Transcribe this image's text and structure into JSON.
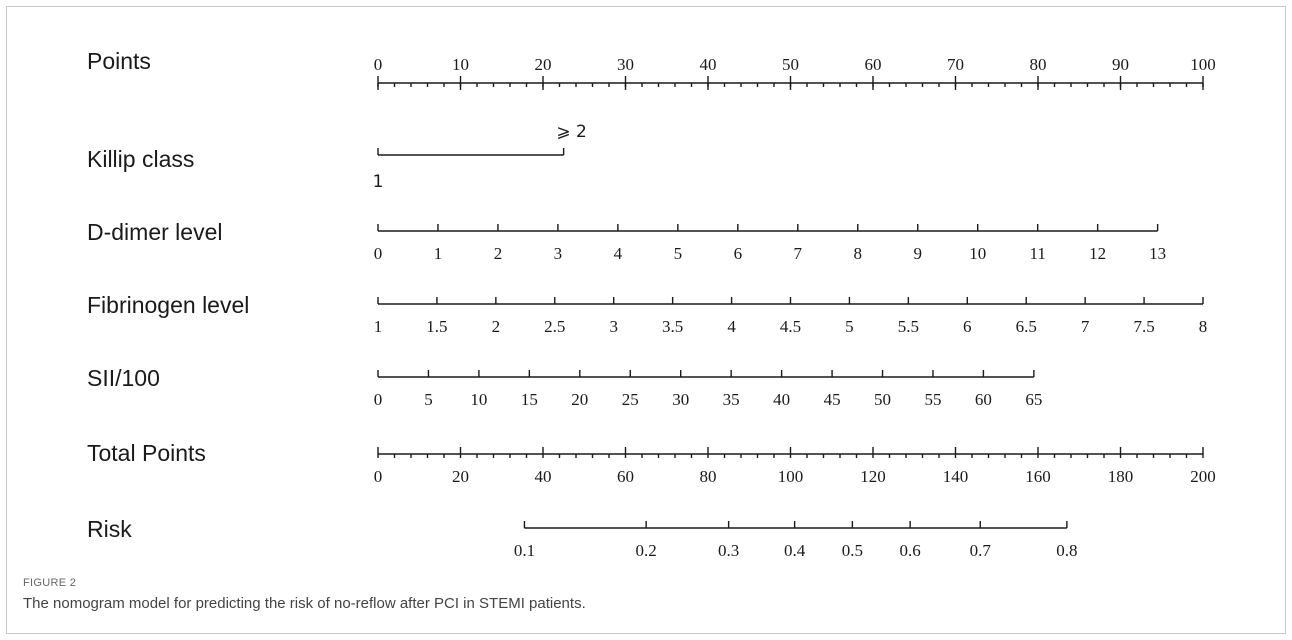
{
  "figure": {
    "label": "FIGURE 2",
    "caption": "The nomogram model for predicting the risk of no-reflow after PCI in STEMI patients."
  },
  "chart_data": {
    "type": "nomogram",
    "title": "",
    "points_scale": [
      0,
      100
    ],
    "rows": [
      {
        "name": "Points",
        "scale": "points",
        "ticks": [
          {
            "value": 0,
            "label": "0"
          },
          {
            "value": 10,
            "label": "10"
          },
          {
            "value": 20,
            "label": "20"
          },
          {
            "value": 30,
            "label": "30"
          },
          {
            "value": 40,
            "label": "40"
          },
          {
            "value": 50,
            "label": "50"
          },
          {
            "value": 60,
            "label": "60"
          },
          {
            "value": 70,
            "label": "70"
          },
          {
            "value": 80,
            "label": "80"
          },
          {
            "value": 90,
            "label": "90"
          },
          {
            "value": 100,
            "label": "100"
          }
        ],
        "minor_step": 2
      },
      {
        "name": "Killip class",
        "scale": "categorical",
        "ticks": [
          {
            "value": 1,
            "label": "1",
            "points": 0,
            "label_side": "below"
          },
          {
            "value": 2,
            "label": "⩾ 2",
            "points": 22.5,
            "label_side": "above"
          }
        ]
      },
      {
        "name": "D-dimer level",
        "scale": "linear",
        "from": [
          0,
          0
        ],
        "to": [
          13,
          94.5
        ],
        "ticks": [
          {
            "value": 0,
            "label": "0"
          },
          {
            "value": 1,
            "label": "1"
          },
          {
            "value": 2,
            "label": "2"
          },
          {
            "value": 3,
            "label": "3"
          },
          {
            "value": 4,
            "label": "4"
          },
          {
            "value": 5,
            "label": "5"
          },
          {
            "value": 6,
            "label": "6"
          },
          {
            "value": 7,
            "label": "7"
          },
          {
            "value": 8,
            "label": "8"
          },
          {
            "value": 9,
            "label": "9"
          },
          {
            "value": 10,
            "label": "10"
          },
          {
            "value": 11,
            "label": "11"
          },
          {
            "value": 12,
            "label": "12"
          },
          {
            "value": 13,
            "label": "13"
          }
        ]
      },
      {
        "name": "Fibrinogen level",
        "scale": "linear",
        "from": [
          1,
          0
        ],
        "to": [
          8,
          100
        ],
        "ticks": [
          {
            "value": 1,
            "label": "1"
          },
          {
            "value": 1.5,
            "label": "1.5"
          },
          {
            "value": 2,
            "label": "2"
          },
          {
            "value": 2.5,
            "label": "2.5"
          },
          {
            "value": 3,
            "label": "3"
          },
          {
            "value": 3.5,
            "label": "3.5"
          },
          {
            "value": 4,
            "label": "4"
          },
          {
            "value": 4.5,
            "label": "4.5"
          },
          {
            "value": 5,
            "label": "5"
          },
          {
            "value": 5.5,
            "label": "5.5"
          },
          {
            "value": 6,
            "label": "6"
          },
          {
            "value": 6.5,
            "label": "6.5"
          },
          {
            "value": 7,
            "label": "7"
          },
          {
            "value": 7.5,
            "label": "7.5"
          },
          {
            "value": 8,
            "label": "8"
          }
        ]
      },
      {
        "name": "SII/100",
        "scale": "linear",
        "from": [
          0,
          0
        ],
        "to": [
          65,
          79.5
        ],
        "ticks": [
          {
            "value": 0,
            "label": "0"
          },
          {
            "value": 5,
            "label": "5"
          },
          {
            "value": 10,
            "label": "10"
          },
          {
            "value": 15,
            "label": "15"
          },
          {
            "value": 20,
            "label": "20"
          },
          {
            "value": 25,
            "label": "25"
          },
          {
            "value": 30,
            "label": "30"
          },
          {
            "value": 35,
            "label": "35"
          },
          {
            "value": 40,
            "label": "40"
          },
          {
            "value": 45,
            "label": "45"
          },
          {
            "value": 50,
            "label": "50"
          },
          {
            "value": 55,
            "label": "55"
          },
          {
            "value": 60,
            "label": "60"
          },
          {
            "value": 65,
            "label": "65"
          }
        ]
      },
      {
        "name": "Total Points",
        "scale": "linear",
        "from": [
          0,
          0
        ],
        "to": [
          200,
          100
        ],
        "ticks": [
          {
            "value": 0,
            "label": "0"
          },
          {
            "value": 20,
            "label": "20"
          },
          {
            "value": 40,
            "label": "40"
          },
          {
            "value": 60,
            "label": "60"
          },
          {
            "value": 80,
            "label": "80"
          },
          {
            "value": 100,
            "label": "100"
          },
          {
            "value": 120,
            "label": "120"
          },
          {
            "value": 140,
            "label": "140"
          },
          {
            "value": 160,
            "label": "160"
          },
          {
            "value": 180,
            "label": "180"
          },
          {
            "value": 200,
            "label": "200"
          }
        ],
        "minor_step": 4
      },
      {
        "name": "Risk",
        "scale": "total_points",
        "ticks": [
          {
            "value": 0.1,
            "label": "0.1",
            "total_points": 35.5
          },
          {
            "value": 0.2,
            "label": "0.2",
            "total_points": 65
          },
          {
            "value": 0.3,
            "label": "0.3",
            "total_points": 85
          },
          {
            "value": 0.4,
            "label": "0.4",
            "total_points": 101
          },
          {
            "value": 0.5,
            "label": "0.5",
            "total_points": 115
          },
          {
            "value": 0.6,
            "label": "0.6",
            "total_points": 129
          },
          {
            "value": 0.7,
            "label": "0.7",
            "total_points": 146
          },
          {
            "value": 0.8,
            "label": "0.8",
            "total_points": 167
          }
        ]
      }
    ]
  }
}
